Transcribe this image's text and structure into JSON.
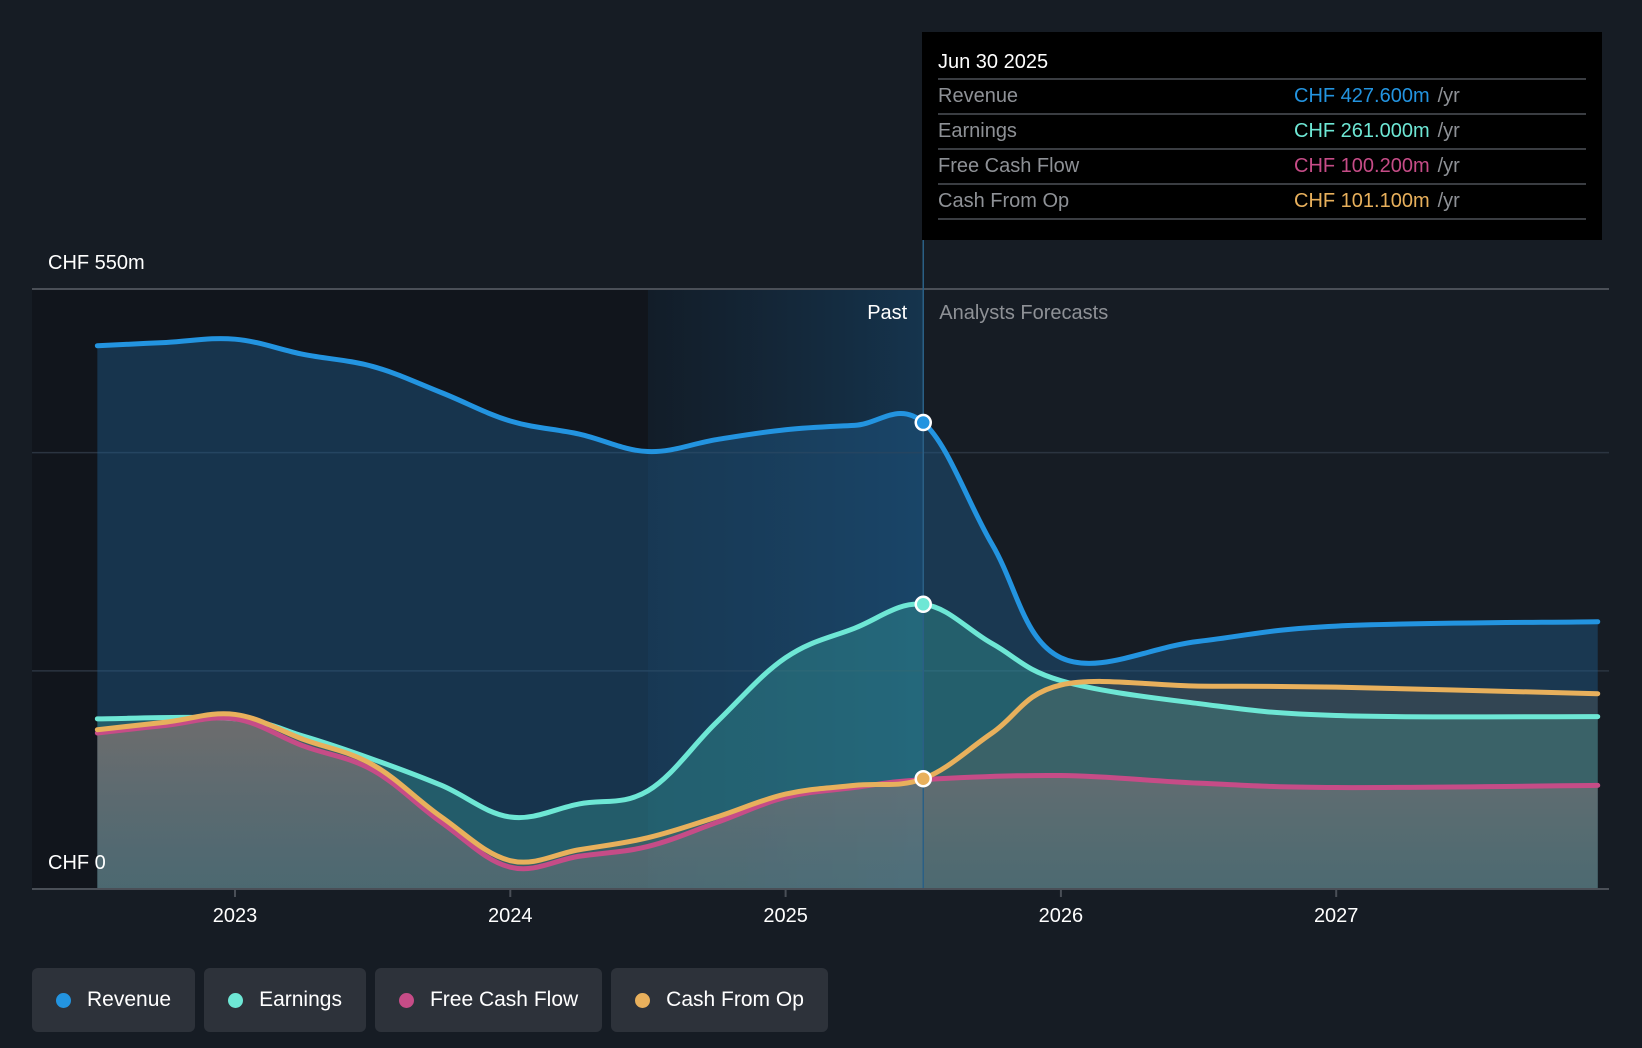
{
  "chart_data": {
    "type": "area",
    "title": "",
    "xlabel": "",
    "ylabel": "",
    "y_axis_labels": {
      "top": "CHF 550m",
      "bottom": "CHF 0"
    },
    "ylim": [
      0,
      550
    ],
    "xlim": [
      2022.5,
      2027.95
    ],
    "gridlines_y": [
      200,
      400,
      550
    ],
    "grid": true,
    "x_ticks": [
      {
        "value": 2023,
        "label": "2023"
      },
      {
        "value": 2024,
        "label": "2024"
      },
      {
        "value": 2025,
        "label": "2025"
      },
      {
        "value": 2026,
        "label": "2026"
      },
      {
        "value": 2027,
        "label": "2027"
      }
    ],
    "past_divider": 2025.5,
    "highlight_start": 2024.5,
    "period_labels": {
      "past": "Past",
      "forecast": "Analysts Forecasts"
    },
    "units": "CHF m /yr",
    "series": [
      {
        "name": "Revenue",
        "color": "#2394e0",
        "points": [
          [
            2022.5,
            498
          ],
          [
            2022.75,
            501
          ],
          [
            2023,
            504
          ],
          [
            2023.25,
            490
          ],
          [
            2023.5,
            479
          ],
          [
            2023.75,
            455
          ],
          [
            2024,
            429
          ],
          [
            2024.25,
            417
          ],
          [
            2024.5,
            401
          ],
          [
            2024.75,
            412
          ],
          [
            2025,
            421
          ],
          [
            2025.25,
            425
          ],
          [
            2025.5,
            427.6
          ],
          [
            2025.75,
            316
          ],
          [
            2026,
            212
          ],
          [
            2026.5,
            227
          ],
          [
            2027,
            241
          ],
          [
            2027.95,
            245
          ]
        ]
      },
      {
        "name": "Earnings",
        "color": "#6ee7d5",
        "points": [
          [
            2022.5,
            156
          ],
          [
            2023,
            156
          ],
          [
            2023.25,
            140
          ],
          [
            2023.5,
            119
          ],
          [
            2023.75,
            95
          ],
          [
            2024,
            66
          ],
          [
            2024.25,
            78
          ],
          [
            2024.5,
            90
          ],
          [
            2024.75,
            153
          ],
          [
            2025,
            212
          ],
          [
            2025.25,
            239
          ],
          [
            2025.5,
            261.0
          ],
          [
            2025.75,
            225
          ],
          [
            2026,
            191
          ],
          [
            2026.5,
            170
          ],
          [
            2027,
            159
          ],
          [
            2027.95,
            158
          ]
        ]
      },
      {
        "name": "Free Cash Flow",
        "color": "#c64c87",
        "points": [
          [
            2022.5,
            143
          ],
          [
            2022.75,
            150
          ],
          [
            2023,
            156
          ],
          [
            2023.25,
            131
          ],
          [
            2023.5,
            109
          ],
          [
            2023.75,
            61
          ],
          [
            2024,
            20
          ],
          [
            2024.25,
            30
          ],
          [
            2024.5,
            39
          ],
          [
            2024.75,
            61
          ],
          [
            2025,
            84
          ],
          [
            2025.25,
            93
          ],
          [
            2025.5,
            100.2
          ],
          [
            2026,
            104
          ],
          [
            2026.5,
            97
          ],
          [
            2027,
            93
          ],
          [
            2027.95,
            95
          ]
        ]
      },
      {
        "name": "Cash From Op",
        "color": "#e8b05c",
        "points": [
          [
            2022.5,
            146
          ],
          [
            2022.75,
            153
          ],
          [
            2023,
            160
          ],
          [
            2023.25,
            137
          ],
          [
            2023.5,
            114
          ],
          [
            2023.75,
            66
          ],
          [
            2024,
            26
          ],
          [
            2024.25,
            36
          ],
          [
            2024.5,
            47
          ],
          [
            2024.75,
            66
          ],
          [
            2025,
            87
          ],
          [
            2025.25,
            95
          ],
          [
            2025.5,
            101.1
          ],
          [
            2025.75,
            143
          ],
          [
            2026,
            187
          ],
          [
            2026.5,
            186
          ],
          [
            2027,
            185
          ],
          [
            2027.95,
            179
          ]
        ]
      }
    ],
    "tooltip": {
      "date": "Jun 30 2025",
      "rows": [
        {
          "name": "Revenue",
          "value": "CHF 427.600m",
          "unit": "/yr",
          "color": "#2394e0"
        },
        {
          "name": "Earnings",
          "value": "CHF 261.000m",
          "unit": "/yr",
          "color": "#6ee7d5"
        },
        {
          "name": "Free Cash Flow",
          "value": "CHF 100.200m",
          "unit": "/yr",
          "color": "#c64c87"
        },
        {
          "name": "Cash From Op",
          "value": "CHF 101.100m",
          "unit": "/yr",
          "color": "#e8b05c"
        }
      ]
    },
    "legend": [
      {
        "label": "Revenue",
        "color": "#2394e0"
      },
      {
        "label": "Earnings",
        "color": "#6ee7d5"
      },
      {
        "label": "Free Cash Flow",
        "color": "#c64c87"
      },
      {
        "label": "Cash From Op",
        "color": "#e8b05c"
      }
    ],
    "legend_position": "bottom-left"
  }
}
